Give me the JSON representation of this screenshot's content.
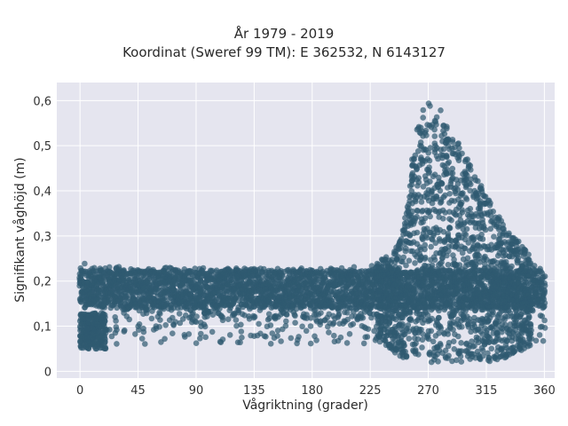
{
  "chart_data": {
    "type": "scatter",
    "title": "År 1979 - 2019",
    "subtitle": "Koordinat (Sweref 99 TM): E 362532, N 6143127",
    "xlabel": "Vågriktning (grader)",
    "ylabel": "Signifikant våghöjd (m)",
    "xlim": [
      -18,
      368
    ],
    "ylim": [
      -0.015,
      0.64
    ],
    "xticks": [
      0,
      45,
      90,
      135,
      180,
      225,
      270,
      315,
      360
    ],
    "xtick_labels": [
      "0",
      "45",
      "90",
      "135",
      "180",
      "225",
      "270",
      "315",
      "360"
    ],
    "yticks": [
      0,
      0.1,
      0.2,
      0.3,
      0.4,
      0.5,
      0.6
    ],
    "ytick_labels": [
      "0",
      "0,1",
      "0,2",
      "0,3",
      "0,4",
      "0,5",
      "0,6"
    ],
    "grid": true,
    "legend": "none",
    "marker_color": "#2f5a70",
    "background_color": "#e5e5ef",
    "envelope": {
      "x": [
        0,
        45,
        90,
        135,
        180,
        210,
        225,
        240,
        250,
        257,
        262,
        270,
        280,
        290,
        300,
        315,
        330,
        345,
        360
      ],
      "upper": [
        0.24,
        0.23,
        0.23,
        0.23,
        0.23,
        0.23,
        0.24,
        0.26,
        0.3,
        0.45,
        0.57,
        0.6,
        0.58,
        0.52,
        0.47,
        0.39,
        0.32,
        0.27,
        0.24
      ],
      "lower_main": [
        0.15,
        0.13,
        0.12,
        0.12,
        0.11,
        0.1,
        0.08,
        0.05,
        0.03,
        0.03,
        0.03,
        0.02,
        0.02,
        0.02,
        0.02,
        0.02,
        0.03,
        0.05,
        0.06
      ]
    },
    "low_cluster": {
      "x_range": [
        0,
        20
      ],
      "y_range": [
        0.05,
        0.13
      ]
    }
  }
}
